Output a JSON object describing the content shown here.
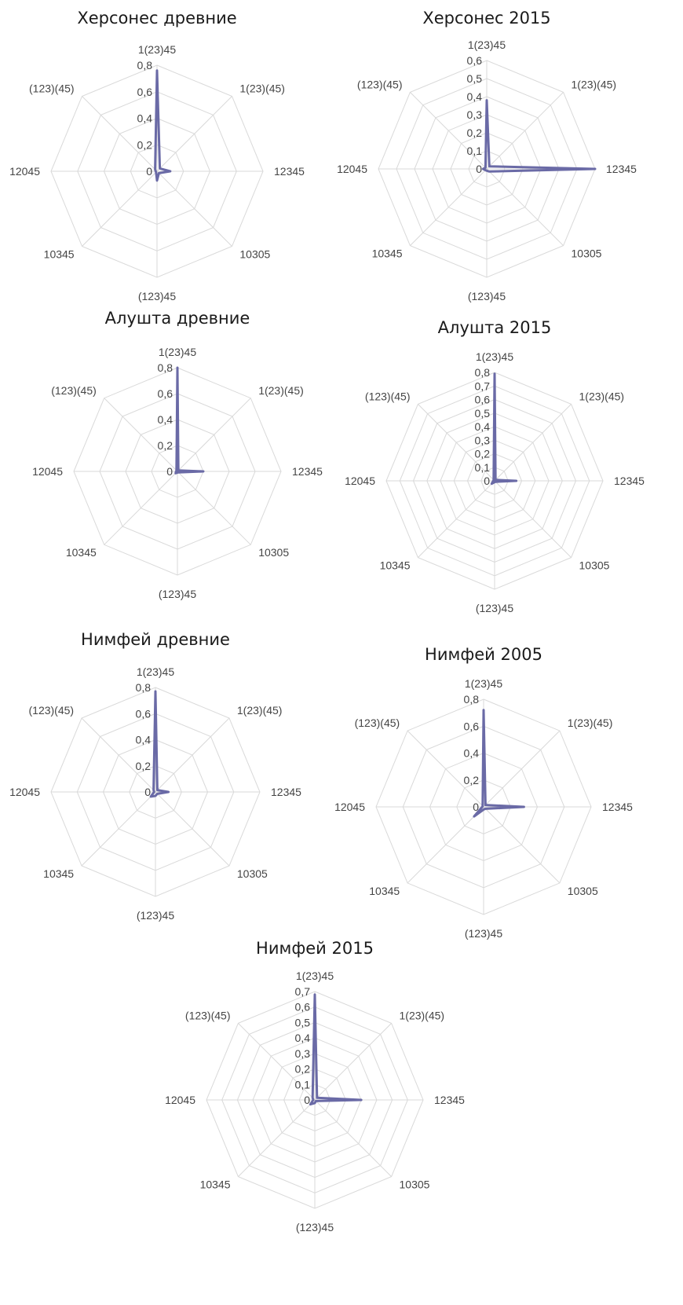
{
  "colors": {
    "series": "#6a6aa6",
    "grid": "#d9d9d9",
    "text": "#444444"
  },
  "chart_data": [
    {
      "type": "radar",
      "title": "Херсонес  древние",
      "categories": [
        "1(23)45",
        "1(23)(45)",
        "12345",
        "10305",
        "(123)45",
        "10345",
        "12045",
        "(123)(45)"
      ],
      "tick_labels": [
        "0",
        "0,2",
        "0,4",
        "0,6",
        "0,8"
      ],
      "ylim": [
        0,
        0.8
      ],
      "series": [
        {
          "values": [
            0.76,
            0.03,
            0.1,
            0.02,
            0.07,
            0.01,
            0.01,
            0.02
          ]
        }
      ]
    },
    {
      "type": "radar",
      "title": "Херсонес 2015",
      "categories": [
        "1(23)45",
        "1(23)(45)",
        "12345",
        "10305",
        "(123)45",
        "10345",
        "12045",
        "(123)(45)"
      ],
      "tick_labels": [
        "0",
        "0,1",
        "0,2",
        "0,3",
        "0,4",
        "0,5",
        "0,6"
      ],
      "ylim": [
        0,
        0.6
      ],
      "series": [
        {
          "values": [
            0.38,
            0.02,
            0.6,
            0.02,
            0.01,
            0.01,
            0.02,
            0.01
          ]
        }
      ]
    },
    {
      "type": "radar",
      "title": "Алушта древние",
      "categories": [
        "1(23)45",
        "1(23)(45)",
        "12345",
        "10305",
        "(123)45",
        "10345",
        "12045",
        "(123)(45)"
      ],
      "tick_labels": [
        "0",
        "0,2",
        "0,4",
        "0,6",
        "0,8"
      ],
      "ylim": [
        0,
        0.8
      ],
      "series": [
        {
          "values": [
            0.8,
            0.01,
            0.2,
            0.01,
            0.01,
            0.02,
            0.01,
            0.01
          ]
        }
      ]
    },
    {
      "type": "radar",
      "title": "Алушта 2015",
      "categories": [
        "1(23)45",
        "1(23)(45)",
        "12345",
        "10305",
        "(123)45",
        "10345",
        "12045",
        "(123)(45)"
      ],
      "tick_labels": [
        "0",
        "0,1",
        "0,2",
        "0,3",
        "0,4",
        "0,5",
        "0,6",
        "0,7",
        "0,8"
      ],
      "ylim": [
        0,
        0.8
      ],
      "series": [
        {
          "values": [
            0.79,
            0.01,
            0.16,
            0.01,
            0.01,
            0.03,
            0.01,
            0.01
          ]
        }
      ]
    },
    {
      "type": "radar",
      "title": "Нимфей древние",
      "categories": [
        "1(23)45",
        "1(23)(45)",
        "12345",
        "10305",
        "(123)45",
        "10345",
        "12045",
        "(123)(45)"
      ],
      "tick_labels": [
        "0",
        "0,2",
        "0,4",
        "0,6",
        "0,8"
      ],
      "ylim": [
        0,
        0.8
      ],
      "series": [
        {
          "values": [
            0.77,
            0.02,
            0.1,
            0.02,
            0.03,
            0.05,
            0.01,
            0.02
          ]
        }
      ]
    },
    {
      "type": "radar",
      "title": "Нимфей 2005",
      "categories": [
        "1(23)45",
        "1(23)(45)",
        "12345",
        "10305",
        "(123)45",
        "10345",
        "12045",
        "(123)(45)"
      ],
      "tick_labels": [
        "0",
        "0,2",
        "0,4",
        "0,6",
        "0,8"
      ],
      "ylim": [
        0,
        0.8
      ],
      "series": [
        {
          "values": [
            0.72,
            0.02,
            0.3,
            0.02,
            0.02,
            0.1,
            0.01,
            0.01
          ]
        }
      ]
    },
    {
      "type": "radar",
      "title": "Нимфей 2015",
      "categories": [
        "1(23)45",
        "1(23)(45)",
        "12345",
        "10305",
        "(123)45",
        "10345",
        "12045",
        "(123)(45)"
      ],
      "tick_labels": [
        "0",
        "0,1",
        "0,2",
        "0,3",
        "0,4",
        "0,5",
        "0,6",
        "0,7"
      ],
      "ylim": [
        0,
        0.7
      ],
      "series": [
        {
          "values": [
            0.68,
            0.02,
            0.3,
            0.01,
            0.02,
            0.04,
            0.01,
            0.02
          ]
        }
      ]
    }
  ]
}
